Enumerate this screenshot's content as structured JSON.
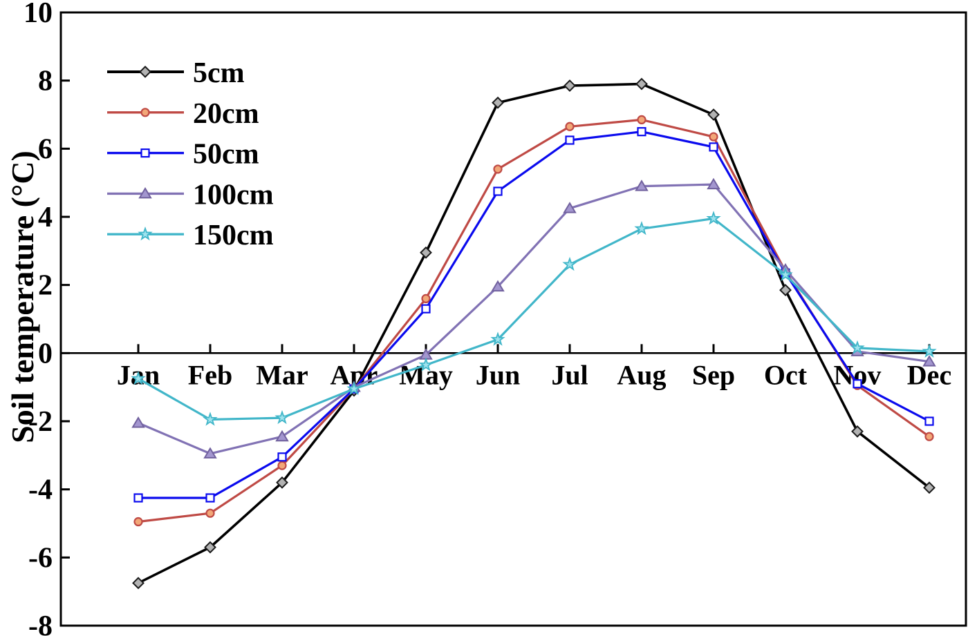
{
  "figure": {
    "ylabel": "Soil temperature (°C)",
    "background": "#ffffff",
    "axis_color": "#000000"
  },
  "chart_data": {
    "type": "line",
    "title": "",
    "xlabel": "",
    "ylabel": "Soil temperature (°C)",
    "categories": [
      "Jan",
      "Feb",
      "Mar",
      "Apr",
      "May",
      "Jun",
      "Jul",
      "Aug",
      "Sep",
      "Oct",
      "Nov",
      "Dec"
    ],
    "ylim": [
      -8,
      10
    ],
    "yticks": [
      10,
      8,
      6,
      4,
      2,
      0,
      -2,
      -4,
      -6,
      -8
    ],
    "grid": false,
    "zero_line": true,
    "x_labels_position": "at-zero-line",
    "legend_position": "upper-left-inside",
    "series": [
      {
        "name": "5cm",
        "color": "#000000",
        "marker": "diamond",
        "marker_fill": "#b3b3b3",
        "marker_stroke": "#1a1a1a",
        "values": [
          -6.75,
          -5.7,
          -3.8,
          -1.1,
          2.95,
          7.35,
          7.85,
          7.9,
          7.0,
          1.85,
          -2.3,
          -3.95
        ]
      },
      {
        "name": "20cm",
        "color": "#bf4a45",
        "marker": "circle",
        "marker_fill": "#f2a778",
        "marker_stroke": "#bf4a45",
        "values": [
          -4.95,
          -4.7,
          -3.3,
          -1.05,
          1.6,
          5.4,
          6.65,
          6.85,
          6.35,
          2.4,
          -0.95,
          -2.45
        ]
      },
      {
        "name": "50cm",
        "color": "#0a0aee",
        "marker": "square",
        "marker_fill": "#ffffff",
        "marker_stroke": "#0a0aee",
        "values": [
          -4.25,
          -4.25,
          -3.05,
          -1.05,
          1.3,
          4.75,
          6.25,
          6.5,
          6.05,
          2.35,
          -0.9,
          -2.0
        ]
      },
      {
        "name": "100cm",
        "color": "#8172b4",
        "marker": "triangle",
        "marker_fill": "#a396cf",
        "marker_stroke": "#71619e",
        "values": [
          -2.05,
          -2.95,
          -2.45,
          -1.0,
          -0.05,
          1.95,
          4.25,
          4.9,
          4.95,
          2.45,
          0.05,
          -0.25
        ]
      },
      {
        "name": "150cm",
        "color": "#41b6c9",
        "marker": "star",
        "marker_fill": "#9fe3ee",
        "marker_stroke": "#41b6c9",
        "values": [
          -0.75,
          -1.95,
          -1.9,
          -1.05,
          -0.35,
          0.4,
          2.6,
          3.65,
          3.95,
          2.3,
          0.15,
          0.05
        ]
      }
    ]
  }
}
